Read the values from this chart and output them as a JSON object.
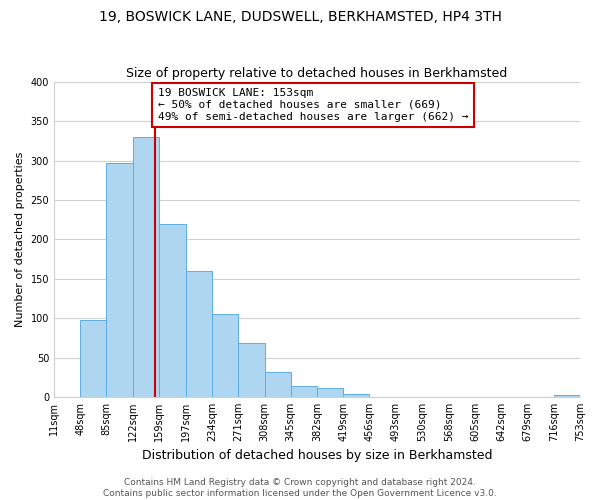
{
  "title": "19, BOSWICK LANE, DUDSWELL, BERKHAMSTED, HP4 3TH",
  "subtitle": "Size of property relative to detached houses in Berkhamsted",
  "xlabel": "Distribution of detached houses by size in Berkhamsted",
  "ylabel": "Number of detached properties",
  "bar_edges": [
    11,
    48,
    85,
    122,
    159,
    197,
    234,
    271,
    308,
    345,
    382,
    419,
    456,
    493,
    530,
    568,
    605,
    642,
    679,
    716,
    753
  ],
  "bar_heights": [
    0,
    98,
    297,
    330,
    220,
    160,
    105,
    68,
    32,
    14,
    11,
    4,
    0,
    0,
    0,
    0,
    0,
    0,
    0,
    2
  ],
  "tick_labels": [
    "11sqm",
    "48sqm",
    "85sqm",
    "122sqm",
    "159sqm",
    "197sqm",
    "234sqm",
    "271sqm",
    "308sqm",
    "345sqm",
    "382sqm",
    "419sqm",
    "456sqm",
    "493sqm",
    "530sqm",
    "568sqm",
    "605sqm",
    "642sqm",
    "679sqm",
    "716sqm",
    "753sqm"
  ],
  "bar_color": "#aed6f1",
  "bar_edge_color": "#5dade2",
  "vline_x": 153,
  "vline_color": "#cc0000",
  "annotation_line1": "19 BOSWICK LANE: 153sqm",
  "annotation_line2": "← 50% of detached houses are smaller (669)",
  "annotation_line3": "49% of semi-detached houses are larger (662) →",
  "annotation_box_color": "#ffffff",
  "annotation_box_edge": "#cc0000",
  "ylim": [
    0,
    400
  ],
  "yticks": [
    0,
    50,
    100,
    150,
    200,
    250,
    300,
    350,
    400
  ],
  "footer_text": "Contains HM Land Registry data © Crown copyright and database right 2024.\nContains public sector information licensed under the Open Government Licence v3.0.",
  "bg_color": "#ffffff",
  "grid_color": "#d0d0d0",
  "title_fontsize": 10,
  "subtitle_fontsize": 9,
  "xlabel_fontsize": 9,
  "ylabel_fontsize": 8,
  "tick_fontsize": 7,
  "annot_fontsize": 8,
  "footer_fontsize": 6.5
}
